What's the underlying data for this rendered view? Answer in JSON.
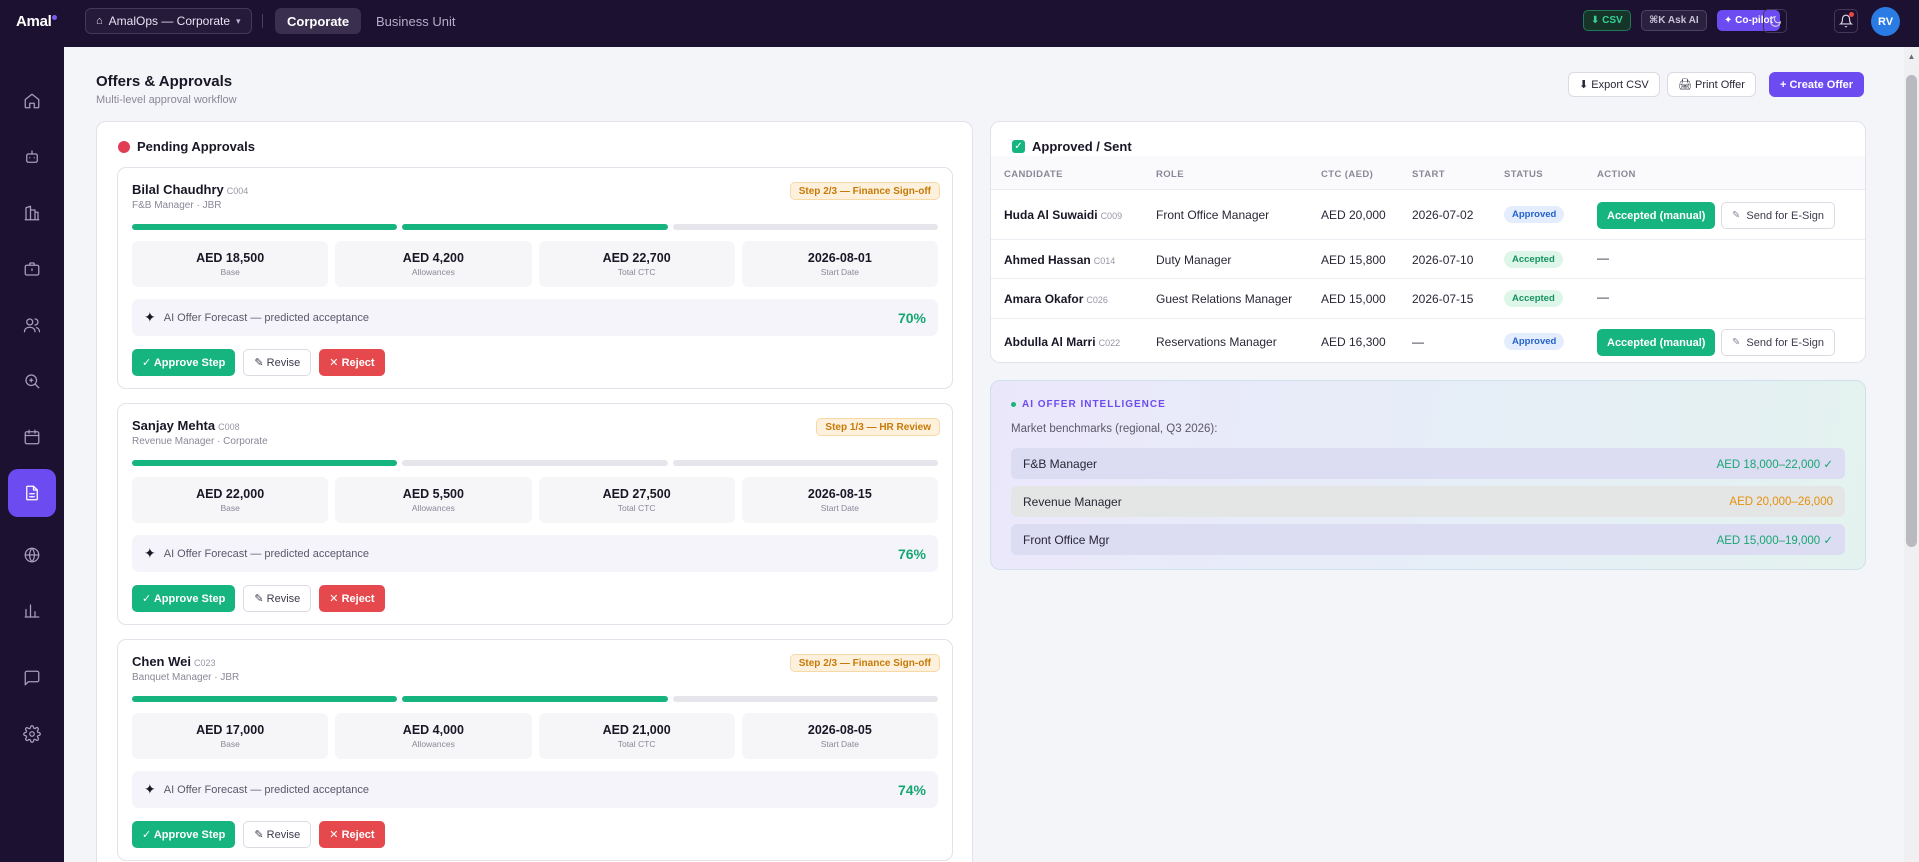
{
  "app": {
    "logo": "Amal",
    "org_selector": "AmalOps — Corporate",
    "scope_tabs": [
      "Corporate",
      "Business Unit"
    ],
    "csv_label": "⬇ CSV",
    "ask_ai_label": "⌘K Ask AI",
    "copilot_label": "✦ Co-pilot",
    "avatar_initials": "RV"
  },
  "header": {
    "title": "Offers & Approvals",
    "subtitle": "Multi-level approval workflow",
    "export_label": "⬇ Export CSV",
    "print_label": "🖨 Print Offer",
    "create_label": "+ Create Offer"
  },
  "pending": {
    "title": "Pending Approvals",
    "forecast_text": "AI Offer Forecast — predicted acceptance",
    "approve_label": "✓ Approve Step",
    "revise_label": "✎ Revise",
    "reject_label": "✕ Reject",
    "metric_labels": [
      "Base",
      "Allowances",
      "Total CTC",
      "Start Date"
    ],
    "offers": [
      {
        "name": "Bilal Chaudhry",
        "id": "C004",
        "role": "F&B Manager · JBR",
        "step": "Step 2/3 — Finance Sign-off",
        "steps_done": 2,
        "base": "AED 18,500",
        "allowances": "AED 4,200",
        "total": "AED 22,700",
        "start": "2026-08-01",
        "forecast": "70%"
      },
      {
        "name": "Sanjay Mehta",
        "id": "C008",
        "role": "Revenue Manager · Corporate",
        "step": "Step 1/3 — HR Review",
        "steps_done": 1,
        "base": "AED 22,000",
        "allowances": "AED 5,500",
        "total": "AED 27,500",
        "start": "2026-08-15",
        "forecast": "76%"
      },
      {
        "name": "Chen Wei",
        "id": "C023",
        "role": "Banquet Manager · JBR",
        "step": "Step 2/3 — Finance Sign-off",
        "steps_done": 2,
        "base": "AED 17,000",
        "allowances": "AED 4,000",
        "total": "AED 21,000",
        "start": "2026-08-05",
        "forecast": "74%"
      }
    ]
  },
  "approved": {
    "title": "Approved / Sent",
    "columns": [
      "CANDIDATE",
      "ROLE",
      "CTC (AED)",
      "START",
      "STATUS",
      "ACTION"
    ],
    "accept_label": "Accepted (manual)",
    "esign_label": "Send for E-Sign",
    "rows": [
      {
        "name": "Huda Al Suwaidi",
        "id": "C009",
        "role": "Front Office Manager",
        "ctc": "AED 20,000",
        "start": "2026-07-02",
        "status": "Approved",
        "action": "buttons"
      },
      {
        "name": "Ahmed Hassan",
        "id": "C014",
        "role": "Duty Manager",
        "ctc": "AED 15,800",
        "start": "2026-07-10",
        "status": "Accepted",
        "action": "—"
      },
      {
        "name": "Amara Okafor",
        "id": "C026",
        "role": "Guest Relations Manager",
        "ctc": "AED 15,000",
        "start": "2026-07-15",
        "status": "Accepted",
        "action": "—"
      },
      {
        "name": "Abdulla Al Marri",
        "id": "C022",
        "role": "Reservations Manager",
        "ctc": "AED 16,300",
        "start": "—",
        "status": "Approved",
        "action": "buttons"
      }
    ]
  },
  "ai": {
    "label": "AI OFFER INTELLIGENCE",
    "subtitle": "Market benchmarks (regional, Q3 2026):",
    "benchmarks": [
      {
        "role": "F&B Manager",
        "range": "AED 18,000–22,000 ✓",
        "status": "ok"
      },
      {
        "role": "Revenue Manager",
        "range": "AED 20,000–26,000",
        "status": "warn"
      },
      {
        "role": "Front Office Mgr",
        "range": "AED 15,000–19,000 ✓",
        "status": "ok"
      }
    ]
  },
  "colors": {
    "brand": "#6c4cf1",
    "success": "#16b47e",
    "danger": "#e5484d",
    "topbar": "#1c1130"
  }
}
